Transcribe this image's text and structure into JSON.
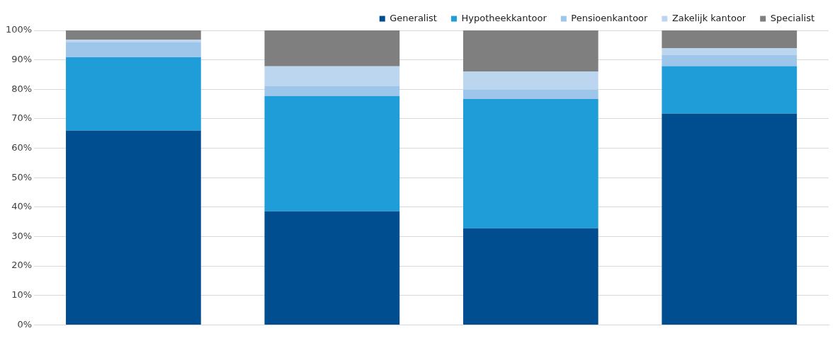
{
  "chart_data": {
    "type": "bar",
    "stacked": true,
    "categories": [
      null,
      null,
      null,
      null
    ],
    "series": [
      {
        "name": "Generalist",
        "color": "#004e8f",
        "values": [
          66.0,
          38.6,
          32.8,
          71.8
        ]
      },
      {
        "name": "Hypotheekkantoor",
        "color": "#1e9dd8",
        "values": [
          24.9,
          39.1,
          43.9,
          16.1
        ]
      },
      {
        "name": "Pensioenkantoor",
        "color": "#9dc6ea",
        "values": [
          5.0,
          3.3,
          3.2,
          3.8
        ]
      },
      {
        "name": "Zakelijk kantoor",
        "color": "#bcd6f0",
        "values": [
          0.9,
          6.8,
          6.2,
          2.3
        ]
      },
      {
        "name": "Specialist",
        "color": "#7f7f7f",
        "values": [
          3.2,
          12.2,
          13.9,
          6.0
        ]
      }
    ],
    "ylim": [
      0,
      100
    ],
    "yticks": [
      {
        "value": 0,
        "label": "0%"
      },
      {
        "value": 10,
        "label": "10%"
      },
      {
        "value": 20,
        "label": "20%"
      },
      {
        "value": 30,
        "label": "30%"
      },
      {
        "value": 40,
        "label": "40%"
      },
      {
        "value": 50,
        "label": "50%"
      },
      {
        "value": 60,
        "label": "60%"
      },
      {
        "value": 70,
        "label": "70%"
      },
      {
        "value": 80,
        "label": "80%"
      },
      {
        "value": 90,
        "label": "90%"
      },
      {
        "value": 100,
        "label": "100%"
      }
    ],
    "grid": "y",
    "legend": "top right"
  }
}
